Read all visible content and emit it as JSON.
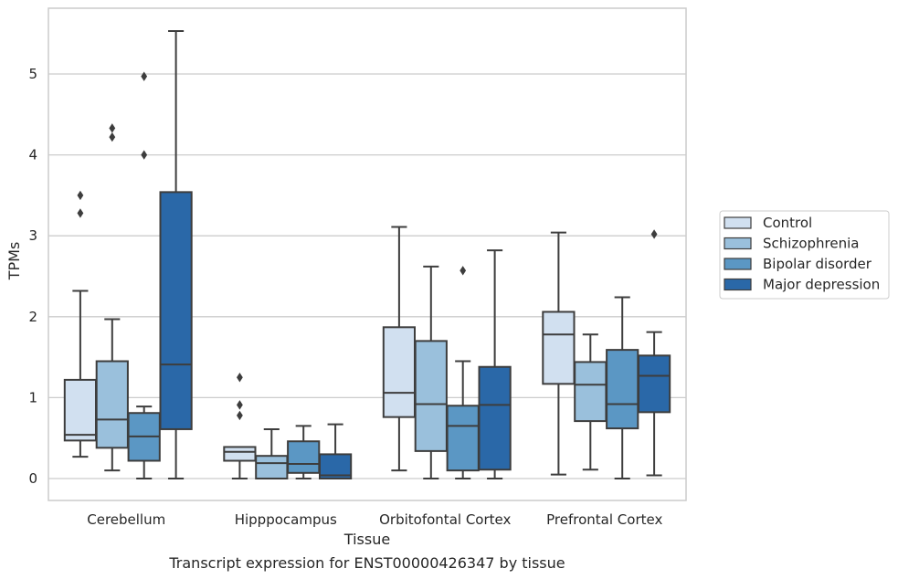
{
  "chart_data": {
    "type": "box",
    "title": "",
    "caption": "Transcript expression for ENST00000426347 by tissue",
    "xlabel": "Tissue",
    "ylabel": "TPMs",
    "ylim": [
      -0.27,
      5.82
    ],
    "yticks": [
      0,
      1,
      2,
      3,
      4,
      5
    ],
    "grid": "horizontal",
    "legend_position": "right",
    "categories": [
      "Cerebellum",
      "Hipppocampus",
      "Orbitofontal Cortex",
      "Prefrontal Cortex"
    ],
    "series": [
      {
        "name": "Control",
        "color": "#d1e0f0",
        "boxes": [
          {
            "whislo": 0.27,
            "q1": 0.47,
            "med": 0.54,
            "q3": 1.22,
            "whishi": 2.32,
            "fliers": [
              3.28,
              3.5
            ]
          },
          {
            "whislo": 0.0,
            "q1": 0.22,
            "med": 0.33,
            "q3": 0.39,
            "whishi": 0.39,
            "fliers": [
              0.78,
              0.91,
              1.25
            ]
          },
          {
            "whislo": 0.1,
            "q1": 0.76,
            "med": 1.06,
            "q3": 1.87,
            "whishi": 3.11,
            "fliers": []
          },
          {
            "whislo": 0.05,
            "q1": 1.17,
            "med": 1.78,
            "q3": 2.06,
            "whishi": 3.04,
            "fliers": []
          }
        ]
      },
      {
        "name": "Schizophrenia",
        "color": "#9ac0dc",
        "boxes": [
          {
            "whislo": 0.1,
            "q1": 0.38,
            "med": 0.73,
            "q3": 1.45,
            "whishi": 1.97,
            "fliers": [
              4.22,
              4.33
            ]
          },
          {
            "whislo": 0.0,
            "q1": 0.0,
            "med": 0.19,
            "q3": 0.28,
            "whishi": 0.61,
            "fliers": []
          },
          {
            "whislo": 0.0,
            "q1": 0.34,
            "med": 0.92,
            "q3": 1.7,
            "whishi": 2.62,
            "fliers": []
          },
          {
            "whislo": 0.11,
            "q1": 0.71,
            "med": 1.16,
            "q3": 1.44,
            "whishi": 1.78,
            "fliers": []
          }
        ]
      },
      {
        "name": "Bipolar disorder",
        "color": "#5b97c4",
        "boxes": [
          {
            "whislo": 0.0,
            "q1": 0.22,
            "med": 0.52,
            "q3": 0.81,
            "whishi": 0.89,
            "fliers": [
              4.0,
              4.97
            ]
          },
          {
            "whislo": 0.0,
            "q1": 0.07,
            "med": 0.18,
            "q3": 0.46,
            "whishi": 0.65,
            "fliers": []
          },
          {
            "whislo": 0.0,
            "q1": 0.1,
            "med": 0.65,
            "q3": 0.9,
            "whishi": 1.45,
            "fliers": [
              2.57
            ]
          },
          {
            "whislo": 0.0,
            "q1": 0.62,
            "med": 0.92,
            "q3": 1.59,
            "whishi": 2.24,
            "fliers": []
          }
        ]
      },
      {
        "name": "Major depression",
        "color": "#2a68a8",
        "boxes": [
          {
            "whislo": 0.0,
            "q1": 0.61,
            "med": 1.41,
            "q3": 3.54,
            "whishi": 5.53,
            "fliers": []
          },
          {
            "whislo": 0.0,
            "q1": 0.0,
            "med": 0.04,
            "q3": 0.3,
            "whishi": 0.67,
            "fliers": []
          },
          {
            "whislo": 0.0,
            "q1": 0.11,
            "med": 0.91,
            "q3": 1.38,
            "whishi": 2.82,
            "fliers": []
          },
          {
            "whislo": 0.04,
            "q1": 0.82,
            "med": 1.27,
            "q3": 1.52,
            "whishi": 1.81,
            "fliers": [
              3.02
            ]
          }
        ]
      }
    ]
  }
}
